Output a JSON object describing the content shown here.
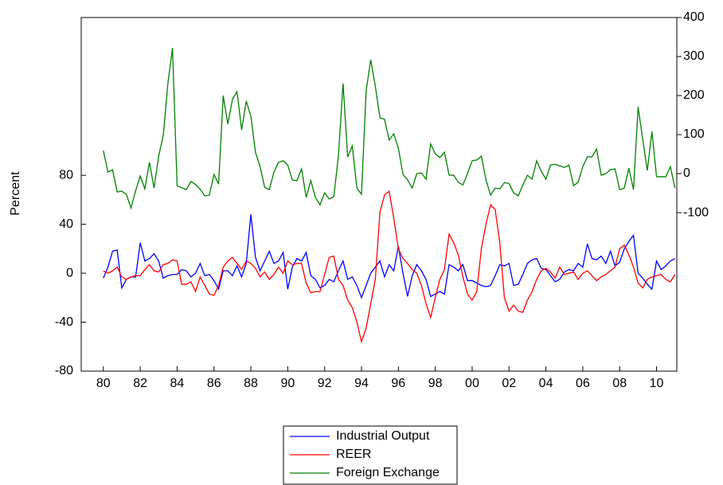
{
  "chart_data": {
    "type": "line",
    "y_label": "Percent",
    "x": [
      1980,
      1980.25,
      1980.5,
      1980.75,
      1981,
      1981.25,
      1981.5,
      1981.75,
      1982,
      1982.25,
      1982.5,
      1982.75,
      1983,
      1983.25,
      1983.5,
      1983.75,
      1984,
      1984.25,
      1984.5,
      1984.75,
      1985,
      1985.25,
      1985.5,
      1985.75,
      1986,
      1986.25,
      1986.5,
      1986.75,
      1987,
      1987.25,
      1987.5,
      1987.75,
      1988,
      1988.25,
      1988.5,
      1988.75,
      1989,
      1989.25,
      1989.5,
      1989.75,
      1990,
      1990.25,
      1990.5,
      1990.75,
      1991,
      1991.25,
      1991.5,
      1991.75,
      1992,
      1992.25,
      1992.5,
      1992.75,
      1993,
      1993.25,
      1993.5,
      1993.75,
      1994,
      1994.25,
      1994.5,
      1994.75,
      1995,
      1995.25,
      1995.5,
      1995.75,
      1996,
      1996.25,
      1996.5,
      1996.75,
      1997,
      1997.25,
      1997.5,
      1997.75,
      1998,
      1998.25,
      1998.5,
      1998.75,
      1999,
      1999.25,
      1999.5,
      1999.75,
      2000,
      2000.25,
      2000.5,
      2000.75,
      2001,
      2001.25,
      2001.5,
      2001.75,
      2002,
      2002.25,
      2002.5,
      2002.75,
      2003,
      2003.25,
      2003.5,
      2003.75,
      2004,
      2004.25,
      2004.5,
      2004.75,
      2005,
      2005.25,
      2005.5,
      2005.75,
      2006,
      2006.25,
      2006.5,
      2006.75,
      2007,
      2007.25,
      2007.5,
      2007.75,
      2008,
      2008.25,
      2008.5,
      2008.75,
      2009,
      2009.25,
      2009.5,
      2009.75,
      2010,
      2010.25,
      2010.5,
      2010.75,
      2011
    ],
    "series": [
      {
        "name": "Industrial Output",
        "color": "#0000ff",
        "values": [
          -4,
          5,
          18,
          19,
          -12,
          -5,
          -3,
          -3,
          25,
          10,
          12,
          16,
          10,
          -4,
          -2,
          -1,
          -1,
          3,
          2,
          -3,
          0,
          8,
          -2,
          -1,
          -6,
          -13,
          2,
          2,
          -2,
          6,
          -3,
          8,
          48,
          13,
          2,
          10,
          18,
          8,
          10,
          17,
          -13,
          5,
          12,
          10,
          17,
          -2,
          -5,
          -12,
          -10,
          -5,
          -7,
          2,
          10,
          -5,
          -3,
          -10,
          -20,
          -10,
          0,
          5,
          10,
          -3,
          7,
          2,
          22,
          0,
          -19,
          -2,
          7,
          2,
          -5,
          -19,
          -17,
          -15,
          -17,
          7,
          5,
          2,
          7,
          -6,
          -6,
          -8,
          -10,
          -11,
          -10,
          -2,
          7,
          6,
          8,
          -10,
          -9,
          -1,
          8,
          11,
          12,
          4,
          3,
          -2,
          -7,
          -5,
          1,
          3,
          2,
          8,
          5,
          24,
          12,
          11,
          14,
          8,
          18,
          6,
          9,
          20,
          26,
          31,
          0,
          -4,
          -9,
          -13,
          10,
          3,
          6,
          10,
          12
        ]
      },
      {
        "name": "REER",
        "color": "#ff0000",
        "values": [
          2,
          0,
          2,
          5,
          -3,
          -5,
          -3,
          -2,
          -2,
          3,
          7,
          2,
          1,
          7,
          8,
          11,
          10,
          -9,
          -9,
          -7,
          -15,
          -3,
          -10,
          -17,
          -18,
          -10,
          5,
          10,
          13,
          8,
          3,
          10,
          8,
          4,
          -3,
          1,
          -5,
          -1,
          5,
          0,
          10,
          7,
          8,
          8,
          -8,
          -16,
          -15,
          -15,
          -1,
          13,
          14,
          -5,
          -10,
          -22,
          -28,
          -40,
          -56,
          -45,
          -25,
          -5,
          50,
          64,
          67,
          45,
          20,
          12,
          8,
          3,
          0,
          -10,
          -25,
          -36,
          -20,
          -5,
          3,
          32,
          25,
          15,
          -3,
          -17,
          -22,
          -15,
          20,
          40,
          56,
          52,
          25,
          -20,
          -31,
          -26,
          -31,
          -32,
          -22,
          -15,
          -5,
          2,
          4,
          1,
          -4,
          5,
          -1,
          0,
          1,
          -5,
          0,
          2,
          -2,
          -6,
          -3,
          -1,
          2,
          5,
          20,
          23,
          15,
          5,
          -8,
          -12,
          -5,
          -3,
          -2,
          -1,
          -5,
          -7,
          -1
        ]
      },
      {
        "name": "Foreign Exchange",
        "color": "#008000",
        "axis": "y2",
        "values": [
          59,
          4,
          10,
          -47,
          -45,
          -53,
          -88,
          -44,
          -6,
          -39,
          29,
          -37,
          45,
          98,
          231,
          322,
          -31,
          -36,
          -41,
          -20,
          -28,
          -40,
          -57,
          -55,
          -2,
          -27,
          200,
          127,
          190,
          210,
          112,
          186,
          147,
          55,
          18,
          -35,
          -41,
          4,
          29,
          33,
          22,
          -16,
          -18,
          12,
          -61,
          -18,
          -61,
          -80,
          -49,
          -65,
          -59,
          47,
          231,
          43,
          71,
          -37,
          -53,
          212,
          292,
          224,
          143,
          139,
          86,
          102,
          65,
          -2,
          -16,
          -37,
          0,
          2,
          -14,
          76,
          51,
          41,
          55,
          -4,
          -4,
          -22,
          -29,
          0,
          33,
          35,
          45,
          -16,
          -55,
          -37,
          -39,
          -23,
          -25,
          -49,
          -57,
          -29,
          -4,
          -14,
          33,
          6,
          -14,
          22,
          24,
          20,
          16,
          22,
          -31,
          -22,
          18,
          43,
          43,
          63,
          -4,
          0,
          10,
          12,
          -41,
          -37,
          14,
          -41,
          171,
          88,
          8,
          108,
          -8,
          -8,
          -8,
          18,
          -37
        ]
      }
    ],
    "xlim": [
      1978.8,
      2011.1
    ],
    "xticks": [
      {
        "value": 1980,
        "label": "80"
      },
      {
        "value": 1982,
        "label": "82"
      },
      {
        "value": 1984,
        "label": "84"
      },
      {
        "value": 1986,
        "label": "86"
      },
      {
        "value": 1988,
        "label": "88"
      },
      {
        "value": 1990,
        "label": "90"
      },
      {
        "value": 1992,
        "label": "92"
      },
      {
        "value": 1994,
        "label": "94"
      },
      {
        "value": 1996,
        "label": "96"
      },
      {
        "value": 1998,
        "label": "98"
      },
      {
        "value": 2000,
        "label": "00"
      },
      {
        "value": 2002,
        "label": "02"
      },
      {
        "value": 2004,
        "label": "04"
      },
      {
        "value": 2006,
        "label": "06"
      },
      {
        "value": 2008,
        "label": "08"
      },
      {
        "value": 2010,
        "label": "10"
      }
    ],
    "ylim": [
      -80,
      209
    ],
    "yticks": [
      -80,
      -40,
      0,
      40,
      80
    ],
    "y2lim": [
      -506,
      400
    ],
    "y2ticks": [
      -100,
      0,
      100,
      200,
      300,
      400
    ],
    "legend": "bottom"
  }
}
